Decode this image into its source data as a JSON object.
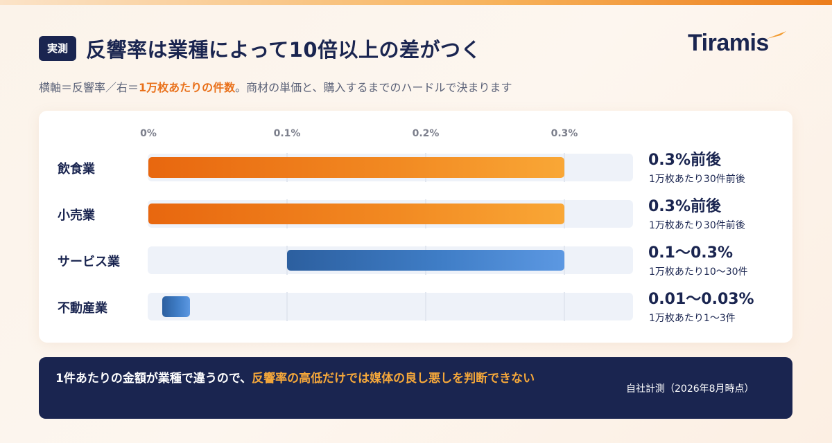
{
  "header": {
    "badge": "実測",
    "title": "反響率は業種によって10倍以上の差がつく",
    "brand": "Tiramis"
  },
  "subtitle": {
    "part1": "横軸＝反響率／右＝",
    "highlight": "1万枚あたりの件数",
    "part2": "。商材の単価と、購入するまでのハードルで決まります"
  },
  "footer": {
    "text_part1": "1件あたりの金額が業種で違うので、",
    "highlight": "反響率の高低だけでは媒体の良し悪しを判断できない",
    "note": "自社計測（2026年8月時点）"
  },
  "colors": {
    "navy": "#1a2550",
    "orange": "#e9701a",
    "blue": "#3f7dc6",
    "track": "#eef2f9"
  },
  "chart_data": {
    "type": "bar",
    "orientation": "horizontal",
    "xlim": [
      0,
      0.35
    ],
    "ticks": [
      0,
      0.1,
      0.2,
      0.3
    ],
    "tick_labels": [
      "0%",
      "0.1%",
      "0.2%",
      "0.3%"
    ],
    "categories": [
      "飲食業",
      "小売業",
      "サービス業",
      "不動産業"
    ],
    "ranges": [
      [
        0,
        0.3
      ],
      [
        0,
        0.3
      ],
      [
        0.1,
        0.3
      ],
      [
        0.01,
        0.03
      ]
    ],
    "bar_colors": [
      "orange",
      "orange",
      "blue",
      "blue"
    ],
    "labels": [
      "0.3%前後",
      "0.3%前後",
      "0.1〜0.3%",
      "0.01〜0.03%"
    ],
    "sublabels": [
      "1万枚あたり30件前後",
      "1万枚あたり30件前後",
      "1万枚あたり10〜30件",
      "1万枚あたり1〜3件"
    ]
  }
}
